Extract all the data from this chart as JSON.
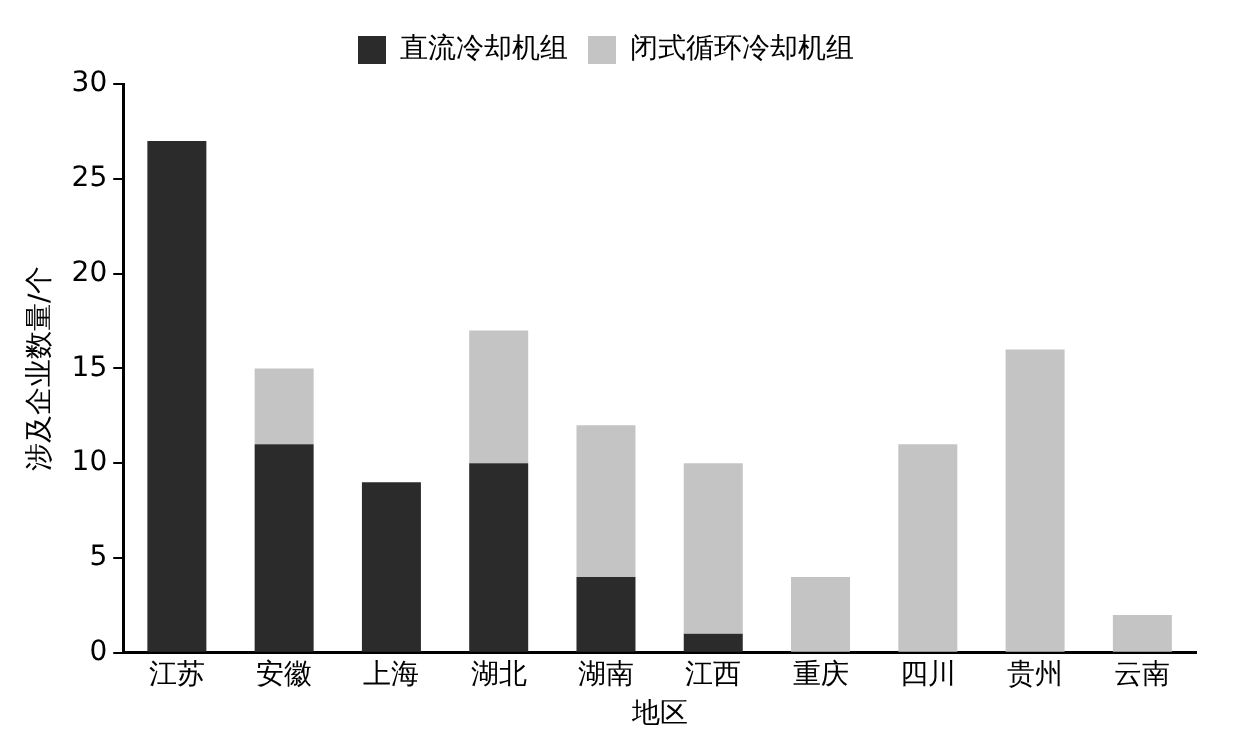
{
  "chart_data": {
    "type": "bar",
    "stacked": true,
    "xlabel": "地区",
    "ylabel": "涉及企业数量/个",
    "categories": [
      "江苏",
      "安徽",
      "上海",
      "湖北",
      "湖南",
      "江西",
      "重庆",
      "四川",
      "贵州",
      "云南"
    ],
    "series": [
      {
        "name": "直流冷却机组",
        "color": "#2b2b2b",
        "values": [
          27,
          11,
          9,
          10,
          4,
          1,
          0,
          0,
          0,
          0
        ]
      },
      {
        "name": "闭式循环冷却机组",
        "color": "#c4c4c4",
        "values": [
          0,
          4,
          0,
          7,
          8,
          9,
          4,
          11,
          16,
          2
        ]
      }
    ],
    "ylim": [
      0,
      30
    ],
    "yticks": [
      0,
      5,
      10,
      15,
      20,
      25,
      30
    ],
    "grid": false,
    "legend": "top"
  }
}
